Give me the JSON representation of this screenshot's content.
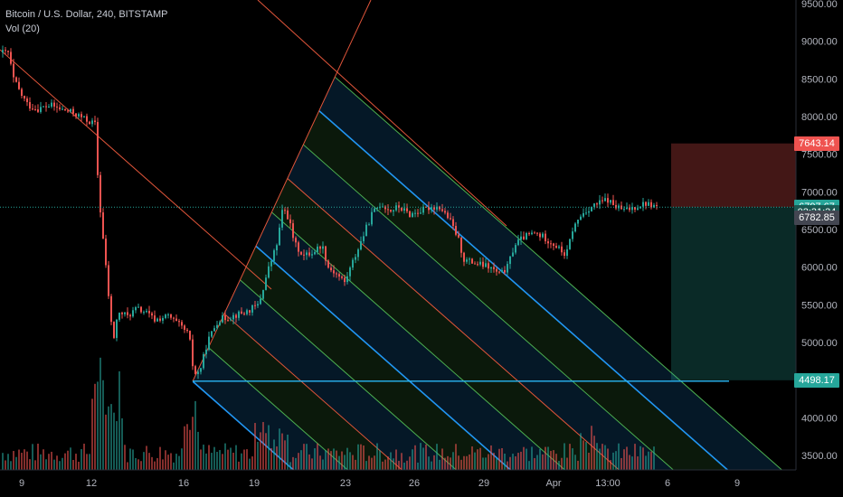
{
  "header": {
    "symbol": "Bitcoin / U.S. Dollar, 240, BITSTAMP",
    "indicator": "Vol (20)"
  },
  "price_tags": [
    {
      "id": "target",
      "label": "7643.14",
      "value": 7643.14,
      "color": "#ef5350"
    },
    {
      "id": "last",
      "label": "6797.67",
      "value": 6797.67,
      "color": "#26a69a"
    },
    {
      "id": "countdown",
      "label": "02:31:34",
      "value": 6727,
      "color": "#1a5a54"
    },
    {
      "id": "open",
      "label": "6782.85",
      "value": 6658,
      "color": "#434651"
    },
    {
      "id": "stop",
      "label": "4498.17",
      "value": 4498.17,
      "color": "#26a69a"
    }
  ],
  "colors": {
    "up": "#26a69a",
    "down": "#ef5350",
    "fib_red": "#e0553a",
    "fib_green": "#4caf50",
    "fib_blue": "#2196f3",
    "horizontal": "#29b6f6",
    "bg": "#000000",
    "axis_text": "#b2b5be"
  },
  "chart_data": {
    "type": "candlestick",
    "title": "Bitcoin / U.S. Dollar, 240, BITSTAMP",
    "ylim": [
      3300,
      9500
    ],
    "y_ticks": [
      3500,
      4000,
      4500,
      5000,
      5500,
      6000,
      6500,
      7000,
      7500,
      8000,
      8500,
      9000,
      9500
    ],
    "y_tick_labels": [
      "3500.00",
      "4000.00",
      "4500.00",
      "5000.00",
      "5500.00",
      "6000.00",
      "6500.00",
      "7000.00",
      "7500.00",
      "8000.00",
      "8500.00",
      "9000.00",
      "9500.00"
    ],
    "x_ticks": [
      "9",
      "12",
      "16",
      "19",
      "23",
      "26",
      "29",
      "Apr",
      "13:00",
      "6",
      "9"
    ],
    "close_path": [
      [
        0,
        8850
      ],
      [
        8,
        8850
      ],
      [
        14,
        8500
      ],
      [
        22,
        8300
      ],
      [
        30,
        8150
      ],
      [
        40,
        8100
      ],
      [
        55,
        8150
      ],
      [
        65,
        8100
      ],
      [
        80,
        8050
      ],
      [
        95,
        7950
      ],
      [
        104,
        7900
      ],
      [
        108,
        7000
      ],
      [
        112,
        6500
      ],
      [
        116,
        6000
      ],
      [
        120,
        5500
      ],
      [
        124,
        5000
      ],
      [
        128,
        5300
      ],
      [
        132,
        5400
      ],
      [
        140,
        5350
      ],
      [
        150,
        5450
      ],
      [
        160,
        5400
      ],
      [
        170,
        5300
      ],
      [
        185,
        5350
      ],
      [
        200,
        5200
      ],
      [
        208,
        5100
      ],
      [
        212,
        4700
      ],
      [
        216,
        4550
      ],
      [
        222,
        4700
      ],
      [
        228,
        5000
      ],
      [
        240,
        5300
      ],
      [
        255,
        5350
      ],
      [
        270,
        5400
      ],
      [
        285,
        5500
      ],
      [
        295,
        5950
      ],
      [
        305,
        6300
      ],
      [
        312,
        6800
      ],
      [
        318,
        6650
      ],
      [
        325,
        6300
      ],
      [
        335,
        6150
      ],
      [
        345,
        6200
      ],
      [
        355,
        6300
      ],
      [
        362,
        6000
      ],
      [
        372,
        5900
      ],
      [
        380,
        5800
      ],
      [
        390,
        6100
      ],
      [
        400,
        6400
      ],
      [
        410,
        6700
      ],
      [
        420,
        6850
      ],
      [
        430,
        6750
      ],
      [
        440,
        6800
      ],
      [
        452,
        6700
      ],
      [
        465,
        6750
      ],
      [
        475,
        6800
      ],
      [
        485,
        6800
      ],
      [
        495,
        6650
      ],
      [
        505,
        6400
      ],
      [
        512,
        6100
      ],
      [
        525,
        6050
      ],
      [
        540,
        6000
      ],
      [
        552,
        5900
      ],
      [
        560,
        6000
      ],
      [
        568,
        6300
      ],
      [
        578,
        6400
      ],
      [
        590,
        6450
      ],
      [
        600,
        6400
      ],
      [
        612,
        6300
      ],
      [
        625,
        6150
      ],
      [
        632,
        6500
      ],
      [
        642,
        6700
      ],
      [
        652,
        6800
      ],
      [
        662,
        6850
      ],
      [
        670,
        6900
      ],
      [
        680,
        6800
      ],
      [
        690,
        6750
      ],
      [
        700,
        6800
      ],
      [
        712,
        6850
      ],
      [
        725,
        6800
      ]
    ],
    "horizontal_line": {
      "value": 4498.17
    },
    "position": {
      "entry": 6797.67,
      "target": 7643.14,
      "stop": 4498.17
    }
  }
}
